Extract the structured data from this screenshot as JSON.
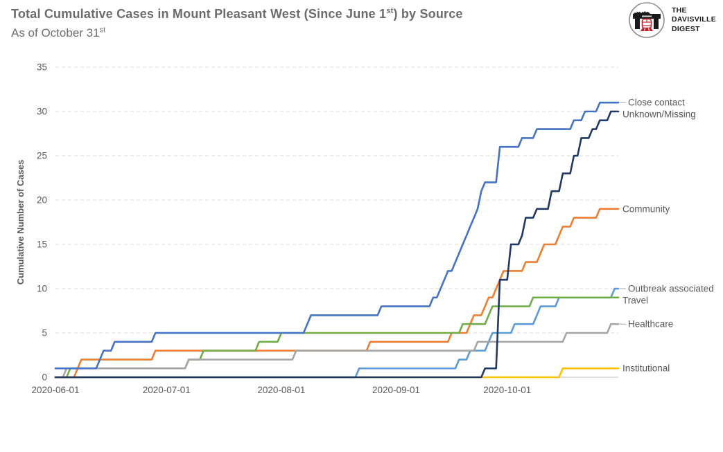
{
  "header": {
    "title_main": "Total Cumulative Cases in Mount Pleasant West (Since June 1",
    "title_sup": "st",
    "title_tail": ") by Source",
    "subtitle_main": "As of October 31",
    "subtitle_sup": "st"
  },
  "logo": {
    "line1": "THE",
    "line2": "DAVISVILLE",
    "line3": "DIGEST",
    "circle_color": "#8c8c8c",
    "bridge_color": "#1a1a1a",
    "train_color": "#c1272d"
  },
  "chart_data": {
    "type": "line",
    "title": "Total Cumulative Cases in Mount Pleasant West (Since June 1st) by Source",
    "subtitle": "As of October 31st",
    "xlabel": "",
    "ylabel": "Cumulative Number of Cases",
    "ylim": [
      0,
      35
    ],
    "y_ticks": [
      0,
      5,
      10,
      15,
      20,
      25,
      30,
      35
    ],
    "x_domain_days": [
      0,
      152
    ],
    "x_ticks": [
      {
        "day": 0,
        "label": "2020-06-01"
      },
      {
        "day": 30,
        "label": "2020-07-01"
      },
      {
        "day": 61,
        "label": "2020-08-01"
      },
      {
        "day": 92,
        "label": "2020-09-01"
      },
      {
        "day": 122,
        "label": "2020-10-01"
      }
    ],
    "grid": "horizontal-dashed",
    "legend_position": "right-end-labels",
    "x_unit": "days since 2020-06-01",
    "draw_order": [
      6,
      3,
      2,
      4,
      5,
      0,
      1
    ],
    "series": [
      {
        "name": "Close contact",
        "color": "#4472C4",
        "final_value": 31,
        "end_hook": true,
        "points": [
          [
            0,
            1
          ],
          [
            11,
            1
          ],
          [
            12,
            2
          ],
          [
            13,
            3
          ],
          [
            15,
            3
          ],
          [
            16,
            4
          ],
          [
            26,
            4
          ],
          [
            27,
            5
          ],
          [
            67,
            5
          ],
          [
            68,
            6
          ],
          [
            69,
            7
          ],
          [
            87,
            7
          ],
          [
            88,
            8
          ],
          [
            101,
            8
          ],
          [
            102,
            9
          ],
          [
            103,
            9
          ],
          [
            104,
            10
          ],
          [
            105,
            11
          ],
          [
            106,
            12
          ],
          [
            107,
            12
          ],
          [
            108,
            13
          ],
          [
            109,
            14
          ],
          [
            110,
            15
          ],
          [
            111,
            16
          ],
          [
            112,
            17
          ],
          [
            113,
            18
          ],
          [
            114,
            19
          ],
          [
            115,
            21
          ],
          [
            116,
            22
          ],
          [
            119,
            22
          ],
          [
            120,
            26
          ],
          [
            125,
            26
          ],
          [
            126,
            27
          ],
          [
            129,
            27
          ],
          [
            130,
            28
          ],
          [
            139,
            28
          ],
          [
            140,
            29
          ],
          [
            142,
            29
          ],
          [
            143,
            30
          ],
          [
            146,
            30
          ],
          [
            147,
            31
          ],
          [
            152,
            31
          ]
        ]
      },
      {
        "name": "Unknown/Missing",
        "color": "#1F3864",
        "final_value": 30,
        "end_hook": false,
        "points": [
          [
            0,
            0
          ],
          [
            115,
            0
          ],
          [
            116,
            1
          ],
          [
            119,
            1
          ],
          [
            120,
            11
          ],
          [
            122,
            11
          ],
          [
            123,
            15
          ],
          [
            125,
            15
          ],
          [
            126,
            16
          ],
          [
            127,
            18
          ],
          [
            129,
            18
          ],
          [
            130,
            19
          ],
          [
            133,
            19
          ],
          [
            134,
            21
          ],
          [
            136,
            21
          ],
          [
            137,
            23
          ],
          [
            139,
            23
          ],
          [
            140,
            25
          ],
          [
            141,
            25
          ],
          [
            142,
            27
          ],
          [
            144,
            27
          ],
          [
            145,
            28
          ],
          [
            146,
            28
          ],
          [
            147,
            29
          ],
          [
            149,
            29
          ],
          [
            150,
            30
          ],
          [
            152,
            30
          ]
        ]
      },
      {
        "name": "Community",
        "color": "#ED7D31",
        "final_value": 19,
        "end_hook": false,
        "points": [
          [
            0,
            0
          ],
          [
            5,
            0
          ],
          [
            6,
            1
          ],
          [
            7,
            2
          ],
          [
            26,
            2
          ],
          [
            27,
            3
          ],
          [
            84,
            3
          ],
          [
            85,
            4
          ],
          [
            106,
            4
          ],
          [
            107,
            5
          ],
          [
            111,
            5
          ],
          [
            112,
            6
          ],
          [
            113,
            7
          ],
          [
            115,
            7
          ],
          [
            116,
            8
          ],
          [
            117,
            9
          ],
          [
            118,
            9
          ],
          [
            119,
            10
          ],
          [
            120,
            11
          ],
          [
            121,
            12
          ],
          [
            126,
            12
          ],
          [
            127,
            13
          ],
          [
            130,
            13
          ],
          [
            131,
            14
          ],
          [
            132,
            15
          ],
          [
            135,
            15
          ],
          [
            136,
            16
          ],
          [
            137,
            17
          ],
          [
            139,
            17
          ],
          [
            140,
            18
          ],
          [
            146,
            18
          ],
          [
            147,
            19
          ],
          [
            152,
            19
          ]
        ]
      },
      {
        "name": "Outbreak associated",
        "color": "#5B9BD5",
        "final_value": 10,
        "end_hook": true,
        "points": [
          [
            0,
            0
          ],
          [
            81,
            0
          ],
          [
            82,
            1
          ],
          [
            108,
            1
          ],
          [
            109,
            2
          ],
          [
            111,
            2
          ],
          [
            112,
            3
          ],
          [
            116,
            3
          ],
          [
            117,
            4
          ],
          [
            118,
            5
          ],
          [
            123,
            5
          ],
          [
            124,
            6
          ],
          [
            129,
            6
          ],
          [
            130,
            7
          ],
          [
            131,
            8
          ],
          [
            135,
            8
          ],
          [
            136,
            9
          ],
          [
            150,
            9
          ],
          [
            151,
            10
          ],
          [
            152,
            10
          ]
        ]
      },
      {
        "name": "Travel",
        "color": "#70AD47",
        "final_value": 9,
        "end_hook": false,
        "points": [
          [
            0,
            0
          ],
          [
            3,
            0
          ],
          [
            4,
            1
          ],
          [
            35,
            1
          ],
          [
            36,
            2
          ],
          [
            39,
            2
          ],
          [
            40,
            3
          ],
          [
            54,
            3
          ],
          [
            55,
            4
          ],
          [
            60,
            4
          ],
          [
            61,
            5
          ],
          [
            109,
            5
          ],
          [
            110,
            6
          ],
          [
            116,
            6
          ],
          [
            117,
            7
          ],
          [
            118,
            8
          ],
          [
            128,
            8
          ],
          [
            129,
            9
          ],
          [
            152,
            9
          ]
        ]
      },
      {
        "name": "Healthcare",
        "color": "#A5A5A5",
        "final_value": 6,
        "end_hook": true,
        "points": [
          [
            0,
            0
          ],
          [
            2,
            0
          ],
          [
            3,
            1
          ],
          [
            35,
            1
          ],
          [
            36,
            2
          ],
          [
            64,
            2
          ],
          [
            65,
            3
          ],
          [
            113,
            3
          ],
          [
            114,
            4
          ],
          [
            137,
            4
          ],
          [
            138,
            5
          ],
          [
            149,
            5
          ],
          [
            150,
            6
          ],
          [
            152,
            6
          ]
        ]
      },
      {
        "name": "Institutional",
        "color": "#FFC000",
        "final_value": 1,
        "end_hook": false,
        "points": [
          [
            0,
            0
          ],
          [
            136,
            0
          ],
          [
            137,
            1
          ],
          [
            152,
            1
          ]
        ]
      }
    ]
  }
}
